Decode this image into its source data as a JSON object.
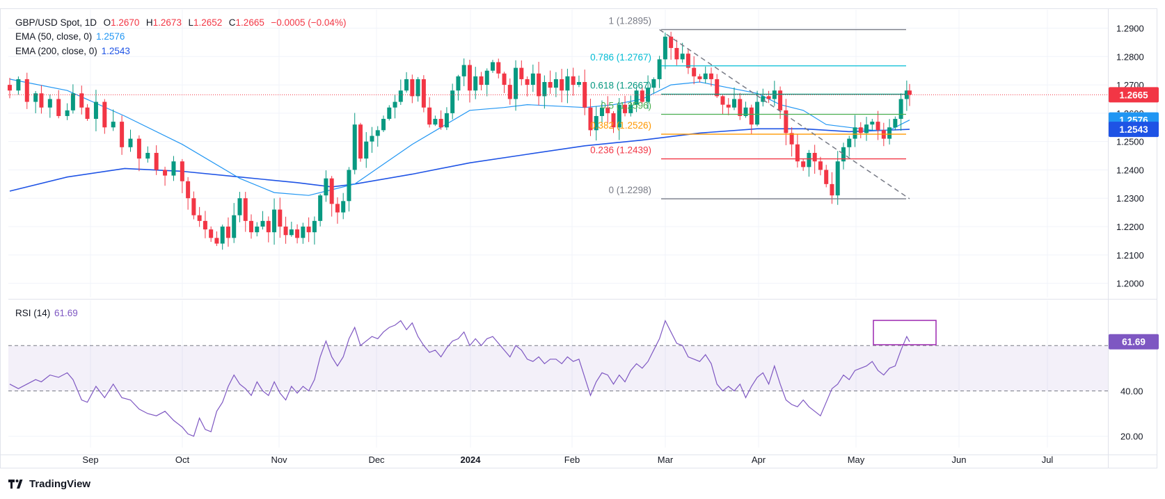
{
  "header": {
    "symbol": "GBP/USD Spot, 1D",
    "open_label": "O",
    "open": "1.2670",
    "high_label": "H",
    "high": "1.2673",
    "low_label": "L",
    "low": "1.2652",
    "close_label": "C",
    "close": "1.2665",
    "change": "−0.0005 (−0.04%)"
  },
  "indicators": {
    "ema50": {
      "label": "EMA (50, close, 0)",
      "value": "1.2576",
      "color": "#2196f3"
    },
    "ema200": {
      "label": "EMA (200, close, 0)",
      "value": "1.2543",
      "color": "#1e53e5"
    },
    "rsi": {
      "label": "RSI (14)",
      "value": "61.69",
      "color": "#7e57c2"
    }
  },
  "price_badge": {
    "value": "1.2665",
    "color": "#f23645"
  },
  "brand": {
    "name": "TradingView"
  },
  "chart_data": {
    "type": "candlestick",
    "title": "GBP/USD Spot, 1D",
    "price_axis": {
      "ticks": [
        "1.2000",
        "1.2100",
        "1.2200",
        "1.2300",
        "1.2400",
        "1.2500",
        "1.2600",
        "1.2700",
        "1.2800",
        "1.2900"
      ],
      "range": [
        1.195,
        1.2965
      ]
    },
    "time_axis": [
      "Sep",
      "Oct",
      "Nov",
      "Dec",
      "2024",
      "Feb",
      "Mar",
      "Apr",
      "May",
      "Jun",
      "Jul"
    ],
    "close_path": [
      [
        0,
        1.268
      ],
      [
        3,
        1.272
      ],
      [
        6,
        1.264
      ],
      [
        9,
        1.267
      ],
      [
        11,
        1.262
      ],
      [
        14,
        1.265
      ],
      [
        17,
        1.259
      ],
      [
        20,
        1.261
      ],
      [
        22,
        1.267
      ],
      [
        25,
        1.262
      ],
      [
        27,
        1.258
      ],
      [
        30,
        1.264
      ],
      [
        33,
        1.255
      ],
      [
        36,
        1.257
      ],
      [
        39,
        1.248
      ],
      [
        42,
        1.251
      ],
      [
        45,
        1.244
      ],
      [
        48,
        1.246
      ],
      [
        51,
        1.24
      ],
      [
        54,
        1.238
      ],
      [
        57,
        1.243
      ],
      [
        60,
        1.236
      ],
      [
        62,
        1.23
      ],
      [
        64,
        1.224
      ],
      [
        66,
        1.222
      ],
      [
        68,
        1.219
      ],
      [
        70,
        1.216
      ],
      [
        72,
        1.214
      ],
      [
        74,
        1.22
      ],
      [
        76,
        1.216
      ],
      [
        78,
        1.224
      ],
      [
        80,
        1.23
      ],
      [
        82,
        1.222
      ],
      [
        84,
        1.218
      ],
      [
        86,
        1.22
      ],
      [
        88,
        1.222
      ],
      [
        90,
        1.218
      ],
      [
        92,
        1.226
      ],
      [
        94,
        1.22
      ],
      [
        96,
        1.217
      ],
      [
        98,
        1.219
      ],
      [
        100,
        1.216
      ],
      [
        102,
        1.22
      ],
      [
        104,
        1.218
      ],
      [
        106,
        1.222
      ],
      [
        108,
        1.231
      ],
      [
        110,
        1.237
      ],
      [
        112,
        1.228
      ],
      [
        114,
        1.225
      ],
      [
        116,
        1.229
      ],
      [
        118,
        1.24
      ],
      [
        120,
        1.256
      ],
      [
        122,
        1.244
      ],
      [
        124,
        1.25
      ],
      [
        126,
        1.252
      ],
      [
        128,
        1.254
      ],
      [
        130,
        1.258
      ],
      [
        132,
        1.262
      ],
      [
        134,
        1.264
      ],
      [
        136,
        1.268
      ],
      [
        138,
        1.272
      ],
      [
        140,
        1.266
      ],
      [
        142,
        1.272
      ],
      [
        144,
        1.262
      ],
      [
        146,
        1.256
      ],
      [
        148,
        1.258
      ],
      [
        150,
        1.255
      ],
      [
        152,
        1.26
      ],
      [
        154,
        1.268
      ],
      [
        156,
        1.273
      ],
      [
        158,
        1.277
      ],
      [
        160,
        1.268
      ],
      [
        162,
        1.273
      ],
      [
        164,
        1.27
      ],
      [
        166,
        1.275
      ],
      [
        168,
        1.278
      ],
      [
        170,
        1.274
      ],
      [
        172,
        1.27
      ],
      [
        174,
        1.265
      ],
      [
        176,
        1.276
      ],
      [
        178,
        1.272
      ],
      [
        180,
        1.27
      ],
      [
        182,
        1.274
      ],
      [
        184,
        1.266
      ],
      [
        186,
        1.271
      ],
      [
        188,
        1.269
      ],
      [
        190,
        1.272
      ],
      [
        192,
        1.268
      ],
      [
        194,
        1.273
      ],
      [
        196,
        1.27
      ],
      [
        198,
        1.271
      ],
      [
        200,
        1.262
      ],
      [
        202,
        1.254
      ],
      [
        204,
        1.259
      ],
      [
        206,
        1.262
      ],
      [
        208,
        1.26
      ],
      [
        210,
        1.255
      ],
      [
        212,
        1.263
      ],
      [
        214,
        1.26
      ],
      [
        216,
        1.263
      ],
      [
        218,
        1.268
      ],
      [
        220,
        1.264
      ],
      [
        222,
        1.269
      ],
      [
        224,
        1.272
      ],
      [
        226,
        1.279
      ],
      [
        228,
        1.287
      ],
      [
        230,
        1.283
      ],
      [
        232,
        1.279
      ],
      [
        234,
        1.281
      ],
      [
        236,
        1.276
      ],
      [
        238,
        1.273
      ],
      [
        240,
        1.272
      ],
      [
        242,
        1.274
      ],
      [
        244,
        1.272
      ],
      [
        246,
        1.266
      ],
      [
        248,
        1.263
      ],
      [
        250,
        1.262
      ],
      [
        252,
        1.265
      ],
      [
        254,
        1.259
      ],
      [
        256,
        1.262
      ],
      [
        258,
        1.256
      ],
      [
        260,
        1.264
      ],
      [
        262,
        1.266
      ],
      [
        264,
        1.265
      ],
      [
        266,
        1.268
      ],
      [
        268,
        1.261
      ],
      [
        270,
        1.253
      ],
      [
        272,
        1.249
      ],
      [
        274,
        1.243
      ],
      [
        276,
        1.241
      ],
      [
        278,
        1.246
      ],
      [
        280,
        1.243
      ],
      [
        282,
        1.24
      ],
      [
        284,
        1.235
      ],
      [
        286,
        1.231
      ],
      [
        288,
        1.243
      ],
      [
        290,
        1.248
      ],
      [
        292,
        1.251
      ],
      [
        294,
        1.255
      ],
      [
        296,
        1.253
      ],
      [
        298,
        1.256
      ],
      [
        300,
        1.257
      ],
      [
        302,
        1.254
      ],
      [
        304,
        1.251
      ],
      [
        306,
        1.255
      ],
      [
        308,
        1.258
      ],
      [
        310,
        1.265
      ],
      [
        312,
        1.268
      ],
      [
        313,
        1.2665
      ]
    ],
    "ema50_path": [
      [
        0,
        1.272
      ],
      [
        20,
        1.268
      ],
      [
        40,
        1.259
      ],
      [
        60,
        1.249
      ],
      [
        80,
        1.237
      ],
      [
        92,
        1.232
      ],
      [
        104,
        1.231
      ],
      [
        112,
        1.233
      ],
      [
        120,
        1.235
      ],
      [
        130,
        1.242
      ],
      [
        140,
        1.249
      ],
      [
        150,
        1.255
      ],
      [
        160,
        1.261
      ],
      [
        172,
        1.262
      ],
      [
        180,
        1.263
      ],
      [
        200,
        1.262
      ],
      [
        210,
        1.263
      ],
      [
        220,
        1.265
      ],
      [
        230,
        1.27
      ],
      [
        240,
        1.271
      ],
      [
        250,
        1.269
      ],
      [
        260,
        1.267
      ],
      [
        268,
        1.263
      ],
      [
        276,
        1.261
      ],
      [
        284,
        1.256
      ],
      [
        292,
        1.255
      ],
      [
        300,
        1.254
      ],
      [
        306,
        1.254
      ],
      [
        313,
        1.2576
      ]
    ],
    "ema200_path": [
      [
        0,
        1.2325
      ],
      [
        20,
        1.2375
      ],
      [
        40,
        1.2405
      ],
      [
        60,
        1.2395
      ],
      [
        80,
        1.2375
      ],
      [
        100,
        1.2355
      ],
      [
        112,
        1.234
      ],
      [
        120,
        1.235
      ],
      [
        140,
        1.2385
      ],
      [
        160,
        1.2425
      ],
      [
        180,
        1.2455
      ],
      [
        200,
        1.2485
      ],
      [
        220,
        1.2505
      ],
      [
        240,
        1.253
      ],
      [
        260,
        1.2545
      ],
      [
        276,
        1.2545
      ],
      [
        292,
        1.2535
      ],
      [
        313,
        1.2543
      ]
    ],
    "fibonacci": [
      {
        "ratio": "1",
        "price": "1.2895",
        "label": "1 (1.2895)",
        "color": "#787b86"
      },
      {
        "ratio": "0.786",
        "price": "1.2767",
        "label": "0.786 (1.2767)",
        "color": "#00bcd4"
      },
      {
        "ratio": "0.618",
        "price": "1.2667",
        "label": "0.618 (1.2667)",
        "color": "#089981"
      },
      {
        "ratio": "0.5",
        "price": "1.2596",
        "label": "0.5 (1.2596)",
        "color": "#4caf50"
      },
      {
        "ratio": "0.382",
        "price": "1.2526",
        "label": "0.382 (1.2526)",
        "color": "#ff9800"
      },
      {
        "ratio": "0.236",
        "price": "1.2439",
        "label": "0.236 (1.2439)",
        "color": "#f23645"
      },
      {
        "ratio": "0",
        "price": "1.2298",
        "label": "0 (1.2298)",
        "color": "#787b86"
      }
    ],
    "trendline": {
      "from": [
        226,
        1.2895
      ],
      "to": [
        313,
        1.2298
      ],
      "style": "dashed"
    },
    "current_price": 1.2665,
    "rsi": {
      "ticks": [
        "20.00",
        "40.00"
      ],
      "overbought": 60,
      "oversold": 40,
      "range": [
        15,
        80
      ],
      "path": [
        [
          0,
          43
        ],
        [
          3,
          41
        ],
        [
          6,
          43
        ],
        [
          9,
          45
        ],
        [
          11,
          44
        ],
        [
          14,
          47
        ],
        [
          17,
          46
        ],
        [
          20,
          48
        ],
        [
          22,
          45
        ],
        [
          25,
          36
        ],
        [
          27,
          35
        ],
        [
          30,
          42
        ],
        [
          33,
          37
        ],
        [
          36,
          43
        ],
        [
          39,
          37
        ],
        [
          42,
          36
        ],
        [
          45,
          32
        ],
        [
          48,
          30
        ],
        [
          51,
          29
        ],
        [
          54,
          31
        ],
        [
          57,
          27
        ],
        [
          60,
          24
        ],
        [
          62,
          21
        ],
        [
          64,
          20
        ],
        [
          66,
          28
        ],
        [
          68,
          23
        ],
        [
          70,
          22
        ],
        [
          72,
          31
        ],
        [
          74,
          35
        ],
        [
          76,
          42
        ],
        [
          78,
          47
        ],
        [
          80,
          43
        ],
        [
          82,
          41
        ],
        [
          84,
          38
        ],
        [
          86,
          44
        ],
        [
          88,
          40
        ],
        [
          90,
          38
        ],
        [
          92,
          44
        ],
        [
          94,
          39
        ],
        [
          96,
          36
        ],
        [
          98,
          42
        ],
        [
          100,
          39
        ],
        [
          102,
          42
        ],
        [
          104,
          40
        ],
        [
          106,
          45
        ],
        [
          108,
          55
        ],
        [
          110,
          62
        ],
        [
          112,
          55
        ],
        [
          114,
          51
        ],
        [
          116,
          55
        ],
        [
          118,
          63
        ],
        [
          120,
          68
        ],
        [
          122,
          60
        ],
        [
          124,
          62
        ],
        [
          126,
          64
        ],
        [
          128,
          63
        ],
        [
          130,
          66
        ],
        [
          132,
          68
        ],
        [
          134,
          69
        ],
        [
          136,
          71
        ],
        [
          138,
          67
        ],
        [
          140,
          70
        ],
        [
          142,
          64
        ],
        [
          144,
          60
        ],
        [
          146,
          57
        ],
        [
          148,
          58
        ],
        [
          150,
          55
        ],
        [
          152,
          59
        ],
        [
          154,
          62
        ],
        [
          156,
          63
        ],
        [
          158,
          66
        ],
        [
          160,
          60
        ],
        [
          162,
          63
        ],
        [
          164,
          60
        ],
        [
          166,
          63
        ],
        [
          168,
          64
        ],
        [
          170,
          61
        ],
        [
          172,
          58
        ],
        [
          174,
          55
        ],
        [
          176,
          60
        ],
        [
          178,
          58
        ],
        [
          180,
          54
        ],
        [
          182,
          53
        ],
        [
          184,
          55
        ],
        [
          186,
          52
        ],
        [
          188,
          54
        ],
        [
          190,
          54
        ],
        [
          192,
          52
        ],
        [
          194,
          55
        ],
        [
          196,
          53
        ],
        [
          198,
          54
        ],
        [
          200,
          46
        ],
        [
          202,
          38
        ],
        [
          204,
          44
        ],
        [
          206,
          48
        ],
        [
          208,
          47
        ],
        [
          210,
          43
        ],
        [
          212,
          47
        ],
        [
          214,
          44
        ],
        [
          216,
          49
        ],
        [
          218,
          52
        ],
        [
          220,
          50
        ],
        [
          222,
          53
        ],
        [
          224,
          58
        ],
        [
          226,
          63
        ],
        [
          228,
          71
        ],
        [
          230,
          66
        ],
        [
          232,
          61
        ],
        [
          234,
          60
        ],
        [
          236,
          55
        ],
        [
          238,
          54
        ],
        [
          240,
          53
        ],
        [
          242,
          56
        ],
        [
          244,
          52
        ],
        [
          246,
          43
        ],
        [
          248,
          40
        ],
        [
          250,
          42
        ],
        [
          252,
          40
        ],
        [
          254,
          43
        ],
        [
          256,
          37
        ],
        [
          258,
          42
        ],
        [
          260,
          46
        ],
        [
          262,
          48
        ],
        [
          264,
          43
        ],
        [
          266,
          51
        ],
        [
          268,
          43
        ],
        [
          270,
          36
        ],
        [
          272,
          34
        ],
        [
          274,
          33
        ],
        [
          276,
          36
        ],
        [
          278,
          33
        ],
        [
          280,
          31
        ],
        [
          282,
          29
        ],
        [
          284,
          35
        ],
        [
          286,
          41
        ],
        [
          288,
          43
        ],
        [
          290,
          47
        ],
        [
          292,
          45
        ],
        [
          294,
          49
        ],
        [
          296,
          50
        ],
        [
          298,
          51
        ],
        [
          300,
          53
        ],
        [
          302,
          49
        ],
        [
          304,
          47
        ],
        [
          306,
          50
        ],
        [
          308,
          51
        ],
        [
          310,
          58
        ],
        [
          312,
          64
        ],
        [
          313,
          61.69
        ]
      ]
    }
  }
}
